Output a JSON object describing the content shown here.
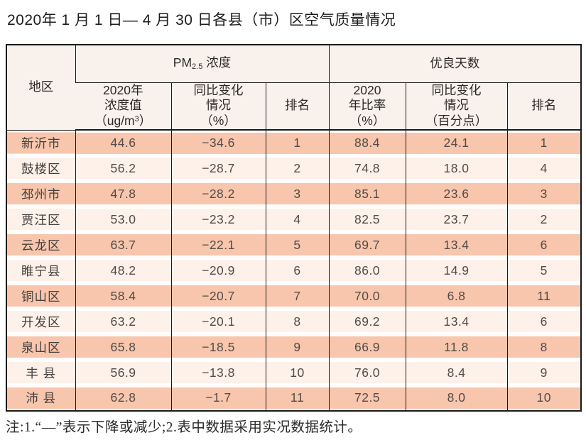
{
  "title": "2020年 1 月 1 日— 4 月 30 日各县（市）区空气质量情况",
  "note": "注:1.“—”表示下降或减少;2.表中数据采用实况数据统计。",
  "colors": {
    "row_odd": "#f8c6ad",
    "row_even": "#fdf1ea",
    "header_bg": "#f9f2ec",
    "border": "#191919"
  },
  "table": {
    "header": {
      "region": "地区",
      "pm25_group": {
        "prefix": "PM",
        "sub": "2.5",
        "suffix": " 浓度"
      },
      "good_days_group": "优良天数",
      "pm_value": {
        "line1": "2020年",
        "line2": "浓度值",
        "unit_prefix": "（ug/m",
        "unit_sup": "3",
        "unit_suffix": "）"
      },
      "pm_change": {
        "line1": "同比变化",
        "line2": "情况",
        "line3": "（%）"
      },
      "pm_rank": "排名",
      "good_ratio": {
        "line1": "2020",
        "line2": "年比率",
        "line3": "（%）"
      },
      "good_change": {
        "line1": "同比变化",
        "line2": "情况",
        "line3": "（百分点）"
      },
      "good_rank": "排名"
    },
    "rows": [
      {
        "region": "新沂市",
        "pm_value": "44.6",
        "pm_change": "−34.6",
        "pm_rank": "1",
        "good_ratio": "88.4",
        "good_change": "24.1",
        "good_rank": "1"
      },
      {
        "region": "鼓楼区",
        "pm_value": "56.2",
        "pm_change": "−28.7",
        "pm_rank": "2",
        "good_ratio": "74.8",
        "good_change": "18.0",
        "good_rank": "4"
      },
      {
        "region": "邳州市",
        "pm_value": "47.8",
        "pm_change": "−28.2",
        "pm_rank": "3",
        "good_ratio": "85.1",
        "good_change": "23.6",
        "good_rank": "3"
      },
      {
        "region": "贾汪区",
        "pm_value": "53.0",
        "pm_change": "−23.2",
        "pm_rank": "4",
        "good_ratio": "82.5",
        "good_change": "23.7",
        "good_rank": "2"
      },
      {
        "region": "云龙区",
        "pm_value": "63.7",
        "pm_change": "−22.1",
        "pm_rank": "5",
        "good_ratio": "69.7",
        "good_change": "13.4",
        "good_rank": "6"
      },
      {
        "region": "睢宁县",
        "pm_value": "48.2",
        "pm_change": "−20.9",
        "pm_rank": "6",
        "good_ratio": "86.0",
        "good_change": "14.9",
        "good_rank": "5"
      },
      {
        "region": "铜山区",
        "pm_value": "58.4",
        "pm_change": "−20.7",
        "pm_rank": "7",
        "good_ratio": "70.0",
        "good_change": "6.8",
        "good_rank": "11"
      },
      {
        "region": "开发区",
        "pm_value": "63.2",
        "pm_change": "−20.1",
        "pm_rank": "8",
        "good_ratio": "69.2",
        "good_change": "13.4",
        "good_rank": "6"
      },
      {
        "region": "泉山区",
        "pm_value": "65.8",
        "pm_change": "−18.5",
        "pm_rank": "9",
        "good_ratio": "66.9",
        "good_change": "11.8",
        "good_rank": "8"
      },
      {
        "region": "丰 县",
        "pm_value": "56.9",
        "pm_change": "−13.8",
        "pm_rank": "10",
        "good_ratio": "76.0",
        "good_change": "8.4",
        "good_rank": "9"
      },
      {
        "region": "沛 县",
        "pm_value": "62.8",
        "pm_change": "−1.7",
        "pm_rank": "11",
        "good_ratio": "72.5",
        "good_change": "8.0",
        "good_rank": "10"
      }
    ]
  }
}
